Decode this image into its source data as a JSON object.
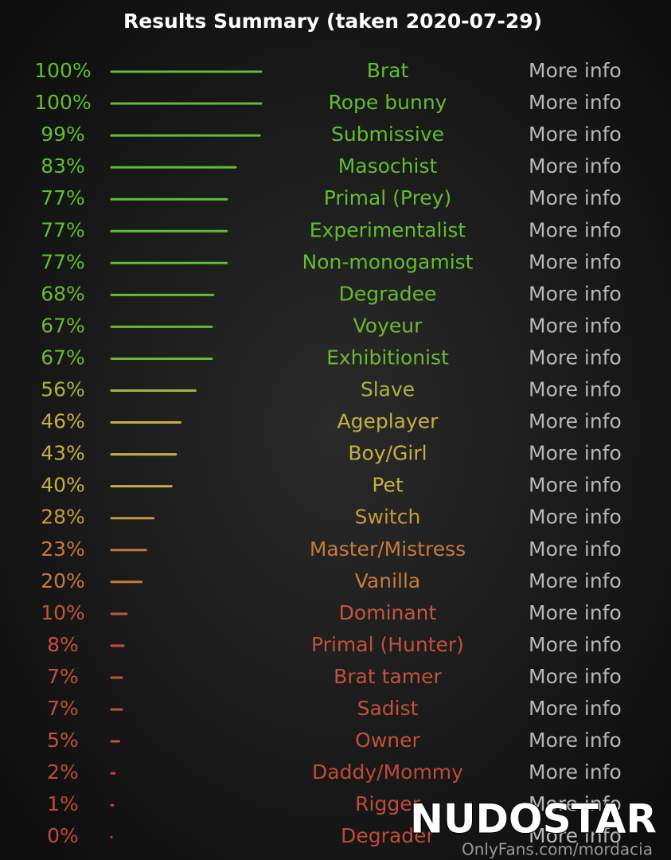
{
  "chart_data": {
    "type": "bar",
    "orientation": "horizontal",
    "title": "Results Summary (taken 2020-07-29)",
    "categories": [
      "Brat",
      "Rope bunny",
      "Submissive",
      "Masochist",
      "Primal (Prey)",
      "Experimentalist",
      "Non-monogamist",
      "Degradee",
      "Voyeur",
      "Exhibitionist",
      "Slave",
      "Ageplayer",
      "Boy/Girl",
      "Pet",
      "Switch",
      "Master/Mistress",
      "Vanilla",
      "Dominant",
      "Primal (Hunter)",
      "Brat tamer",
      "Sadist",
      "Owner",
      "Daddy/Mommy",
      "Rigger",
      "Degrader"
    ],
    "values": [
      100,
      100,
      99,
      83,
      77,
      77,
      77,
      68,
      67,
      67,
      56,
      46,
      43,
      40,
      28,
      23,
      20,
      10,
      8,
      7,
      7,
      5,
      2,
      1,
      0
    ],
    "value_labels": [
      "100%",
      "100%",
      "99%",
      "83%",
      "77%",
      "77%",
      "77%",
      "68%",
      "67%",
      "67%",
      "56%",
      "46%",
      "43%",
      "40%",
      "28%",
      "23%",
      "20%",
      "10%",
      "8%",
      "7%",
      "7%",
      "5%",
      "2%",
      "1%",
      "0%"
    ],
    "colors": [
      "#5fbf2e",
      "#5fbf2e",
      "#5fbf2e",
      "#5fbf2e",
      "#5fbf2e",
      "#5fbf2e",
      "#5fbf2e",
      "#66bb30",
      "#6cb832",
      "#6cb832",
      "#a8b43c",
      "#c4b040",
      "#c4b040",
      "#c4b040",
      "#c49a3a",
      "#c87a3a",
      "#c87a3a",
      "#c4563a",
      "#c4503a",
      "#c4503a",
      "#c4503a",
      "#c4503a",
      "#c04a38",
      "#c04a38",
      "#c04a38"
    ],
    "xlim": [
      0,
      100
    ],
    "link_text": "More info",
    "watermark": "NUDOSTAR",
    "watermark_url": "OnlyFans.com/mordacia"
  }
}
